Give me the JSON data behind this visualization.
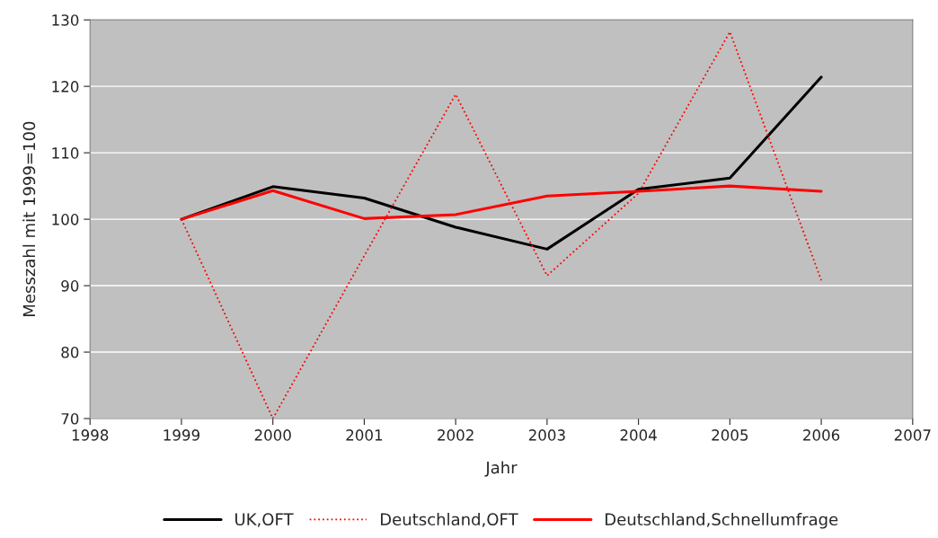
{
  "chart_data": {
    "type": "line",
    "xlabel": "Jahr",
    "ylabel": "Messzahl mit 1999=100",
    "x": [
      1999,
      2000,
      2001,
      2002,
      2003,
      2004,
      2005,
      2006
    ],
    "series": [
      {
        "name": "UK,OFT",
        "color": "#000000",
        "line_style": "solid",
        "values": [
          100,
          104.9,
          103.2,
          98.8,
          95.5,
          104.5,
          106.2,
          121.4
        ]
      },
      {
        "name": "Deutschland,OFT",
        "color": "#ff0000",
        "line_style": "dotted",
        "values": [
          100,
          70,
          94.5,
          118.8,
          91.5,
          103.9,
          128.2,
          90.8
        ]
      },
      {
        "name": "Deutschland,Schnellumfrage",
        "color": "#ff0000",
        "line_style": "solid",
        "values": [
          100,
          104.3,
          100.1,
          100.7,
          103.5,
          104.2,
          105.0,
          104.2
        ]
      }
    ],
    "xlim": [
      1998,
      2007
    ],
    "xticks": [
      1998,
      1999,
      2000,
      2001,
      2002,
      2003,
      2004,
      2005,
      2006,
      2007
    ],
    "ylim": [
      70,
      130
    ],
    "yticks": [
      70,
      80,
      90,
      100,
      110,
      120,
      130
    ],
    "grid": "y",
    "legend": "bottom",
    "marker": "none"
  }
}
